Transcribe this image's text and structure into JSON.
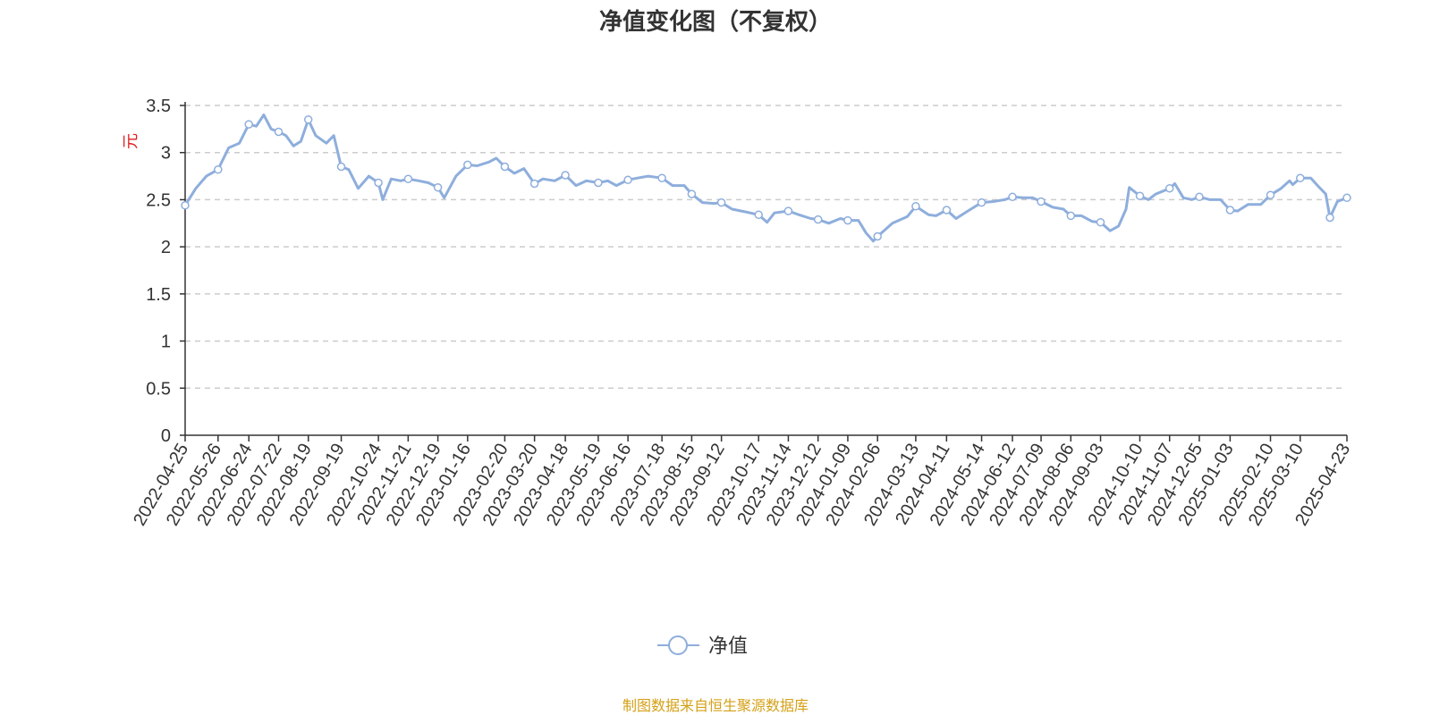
{
  "title": "净值变化图（不复权）",
  "source_note": "制图数据来自恒生聚源数据库",
  "chart_data": {
    "type": "line",
    "title": "净值变化图（不复权）",
    "xlabel": "",
    "ylabel": "元",
    "ylim": [
      0,
      3.5
    ],
    "y_ticks": [
      "0",
      "0.5",
      "1",
      "1.5",
      "2",
      "2.5",
      "3",
      "3.5"
    ],
    "grid": true,
    "legend_position": "bottom-center",
    "x_ticks": [
      "2022-04-25",
      "2022-05-26",
      "2022-06-24",
      "2022-07-22",
      "2022-08-19",
      "2022-09-19",
      "2022-10-24",
      "2022-11-21",
      "2022-12-19",
      "2023-01-16",
      "2023-02-20",
      "2023-03-20",
      "2023-04-18",
      "2023-05-19",
      "2023-06-16",
      "2023-07-18",
      "2023-08-15",
      "2023-09-12",
      "2023-10-17",
      "2023-11-14",
      "2023-12-12",
      "2024-01-09",
      "2024-02-06",
      "2024-03-13",
      "2024-04-11",
      "2024-05-14",
      "2024-06-12",
      "2024-07-09",
      "2024-08-06",
      "2024-09-03",
      "2024-10-10",
      "2024-11-07",
      "2024-12-05",
      "2025-01-03",
      "2025-02-10",
      "2025-03-10",
      "2025-04-23"
    ],
    "series": [
      {
        "name": "净值",
        "color": "#8eaedc",
        "points": [
          [
            "2022-04-25",
            2.44
          ],
          [
            "2022-05-05",
            2.62
          ],
          [
            "2022-05-15",
            2.75
          ],
          [
            "2022-05-26",
            2.82
          ],
          [
            "2022-06-05",
            3.05
          ],
          [
            "2022-06-15",
            3.1
          ],
          [
            "2022-06-24",
            3.3
          ],
          [
            "2022-07-01",
            3.28
          ],
          [
            "2022-07-08",
            3.4
          ],
          [
            "2022-07-15",
            3.25
          ],
          [
            "2022-07-22",
            3.22
          ],
          [
            "2022-07-29",
            3.18
          ],
          [
            "2022-08-05",
            3.07
          ],
          [
            "2022-08-12",
            3.12
          ],
          [
            "2022-08-19",
            3.35
          ],
          [
            "2022-08-26",
            3.18
          ],
          [
            "2022-09-05",
            3.1
          ],
          [
            "2022-09-12",
            3.18
          ],
          [
            "2022-09-19",
            2.85
          ],
          [
            "2022-09-26",
            2.82
          ],
          [
            "2022-10-05",
            2.62
          ],
          [
            "2022-10-15",
            2.75
          ],
          [
            "2022-10-24",
            2.68
          ],
          [
            "2022-10-28",
            2.5
          ],
          [
            "2022-11-05",
            2.72
          ],
          [
            "2022-11-14",
            2.7
          ],
          [
            "2022-11-21",
            2.72
          ],
          [
            "2022-12-01",
            2.7
          ],
          [
            "2022-12-10",
            2.68
          ],
          [
            "2022-12-19",
            2.63
          ],
          [
            "2022-12-25",
            2.52
          ],
          [
            "2023-01-05",
            2.75
          ],
          [
            "2023-01-16",
            2.87
          ],
          [
            "2023-01-25",
            2.86
          ],
          [
            "2023-02-05",
            2.9
          ],
          [
            "2023-02-12",
            2.94
          ],
          [
            "2023-02-20",
            2.85
          ],
          [
            "2023-03-01",
            2.78
          ],
          [
            "2023-03-10",
            2.83
          ],
          [
            "2023-03-20",
            2.67
          ],
          [
            "2023-03-28",
            2.72
          ],
          [
            "2023-04-08",
            2.7
          ],
          [
            "2023-04-18",
            2.76
          ],
          [
            "2023-04-28",
            2.65
          ],
          [
            "2023-05-08",
            2.7
          ],
          [
            "2023-05-19",
            2.68
          ],
          [
            "2023-05-28",
            2.7
          ],
          [
            "2023-06-05",
            2.65
          ],
          [
            "2023-06-16",
            2.71
          ],
          [
            "2023-06-25",
            2.73
          ],
          [
            "2023-07-05",
            2.75
          ],
          [
            "2023-07-18",
            2.73
          ],
          [
            "2023-07-28",
            2.65
          ],
          [
            "2023-08-08",
            2.65
          ],
          [
            "2023-08-15",
            2.56
          ],
          [
            "2023-08-25",
            2.47
          ],
          [
            "2023-09-05",
            2.46
          ],
          [
            "2023-09-12",
            2.47
          ],
          [
            "2023-09-22",
            2.4
          ],
          [
            "2023-10-05",
            2.37
          ],
          [
            "2023-10-17",
            2.34
          ],
          [
            "2023-10-25",
            2.26
          ],
          [
            "2023-11-01",
            2.36
          ],
          [
            "2023-11-14",
            2.38
          ],
          [
            "2023-11-24",
            2.34
          ],
          [
            "2023-12-05",
            2.3
          ],
          [
            "2023-12-12",
            2.29
          ],
          [
            "2023-12-22",
            2.25
          ],
          [
            "2024-01-02",
            2.3
          ],
          [
            "2024-01-09",
            2.28
          ],
          [
            "2024-01-19",
            2.28
          ],
          [
            "2024-01-26",
            2.15
          ],
          [
            "2024-02-02",
            2.06
          ],
          [
            "2024-02-06",
            2.11
          ],
          [
            "2024-02-20",
            2.25
          ],
          [
            "2024-03-05",
            2.32
          ],
          [
            "2024-03-13",
            2.43
          ],
          [
            "2024-03-25",
            2.34
          ],
          [
            "2024-04-01",
            2.33
          ],
          [
            "2024-04-11",
            2.39
          ],
          [
            "2024-04-20",
            2.3
          ],
          [
            "2024-05-01",
            2.38
          ],
          [
            "2024-05-14",
            2.47
          ],
          [
            "2024-05-25",
            2.48
          ],
          [
            "2024-06-05",
            2.5
          ],
          [
            "2024-06-12",
            2.53
          ],
          [
            "2024-06-22",
            2.52
          ],
          [
            "2024-07-01",
            2.52
          ],
          [
            "2024-07-09",
            2.48
          ],
          [
            "2024-07-20",
            2.42
          ],
          [
            "2024-07-30",
            2.4
          ],
          [
            "2024-08-06",
            2.33
          ],
          [
            "2024-08-16",
            2.33
          ],
          [
            "2024-08-26",
            2.27
          ],
          [
            "2024-09-03",
            2.26
          ],
          [
            "2024-09-12",
            2.17
          ],
          [
            "2024-09-20",
            2.22
          ],
          [
            "2024-09-27",
            2.4
          ],
          [
            "2024-09-30",
            2.63
          ],
          [
            "2024-10-10",
            2.54
          ],
          [
            "2024-10-18",
            2.5
          ],
          [
            "2024-10-25",
            2.56
          ],
          [
            "2024-11-07",
            2.62
          ],
          [
            "2024-11-12",
            2.67
          ],
          [
            "2024-11-20",
            2.52
          ],
          [
            "2024-11-28",
            2.5
          ],
          [
            "2024-12-05",
            2.53
          ],
          [
            "2024-12-15",
            2.5
          ],
          [
            "2024-12-25",
            2.5
          ],
          [
            "2025-01-03",
            2.39
          ],
          [
            "2025-01-10",
            2.38
          ],
          [
            "2025-01-20",
            2.45
          ],
          [
            "2025-02-01",
            2.45
          ],
          [
            "2025-02-10",
            2.55
          ],
          [
            "2025-02-20",
            2.62
          ],
          [
            "2025-02-28",
            2.7
          ],
          [
            "2025-03-03",
            2.66
          ],
          [
            "2025-03-10",
            2.73
          ],
          [
            "2025-03-20",
            2.73
          ],
          [
            "2025-03-28",
            2.63
          ],
          [
            "2025-04-03",
            2.56
          ],
          [
            "2025-04-07",
            2.31
          ],
          [
            "2025-04-14",
            2.48
          ],
          [
            "2025-04-23",
            2.52
          ]
        ],
        "markers": [
          [
            "2022-04-25",
            2.44
          ],
          [
            "2022-05-26",
            2.82
          ],
          [
            "2022-06-24",
            3.3
          ],
          [
            "2022-07-22",
            3.22
          ],
          [
            "2022-08-19",
            3.35
          ],
          [
            "2022-09-19",
            2.85
          ],
          [
            "2022-10-24",
            2.68
          ],
          [
            "2022-11-21",
            2.72
          ],
          [
            "2022-12-19",
            2.63
          ],
          [
            "2023-01-16",
            2.87
          ],
          [
            "2023-02-20",
            2.85
          ],
          [
            "2023-03-20",
            2.67
          ],
          [
            "2023-04-18",
            2.76
          ],
          [
            "2023-05-19",
            2.68
          ],
          [
            "2023-06-16",
            2.71
          ],
          [
            "2023-07-18",
            2.73
          ],
          [
            "2023-08-15",
            2.56
          ],
          [
            "2023-09-12",
            2.47
          ],
          [
            "2023-10-17",
            2.34
          ],
          [
            "2023-11-14",
            2.38
          ],
          [
            "2023-12-12",
            2.29
          ],
          [
            "2024-01-09",
            2.28
          ],
          [
            "2024-02-06",
            2.11
          ],
          [
            "2024-03-13",
            2.43
          ],
          [
            "2024-04-11",
            2.39
          ],
          [
            "2024-05-14",
            2.47
          ],
          [
            "2024-06-12",
            2.53
          ],
          [
            "2024-07-09",
            2.48
          ],
          [
            "2024-08-06",
            2.33
          ],
          [
            "2024-09-03",
            2.26
          ],
          [
            "2024-10-10",
            2.54
          ],
          [
            "2024-11-07",
            2.62
          ],
          [
            "2024-12-05",
            2.53
          ],
          [
            "2025-01-03",
            2.39
          ],
          [
            "2025-02-10",
            2.55
          ],
          [
            "2025-03-10",
            2.73
          ],
          [
            "2025-04-07",
            2.31
          ],
          [
            "2025-04-23",
            2.52
          ]
        ]
      }
    ]
  }
}
